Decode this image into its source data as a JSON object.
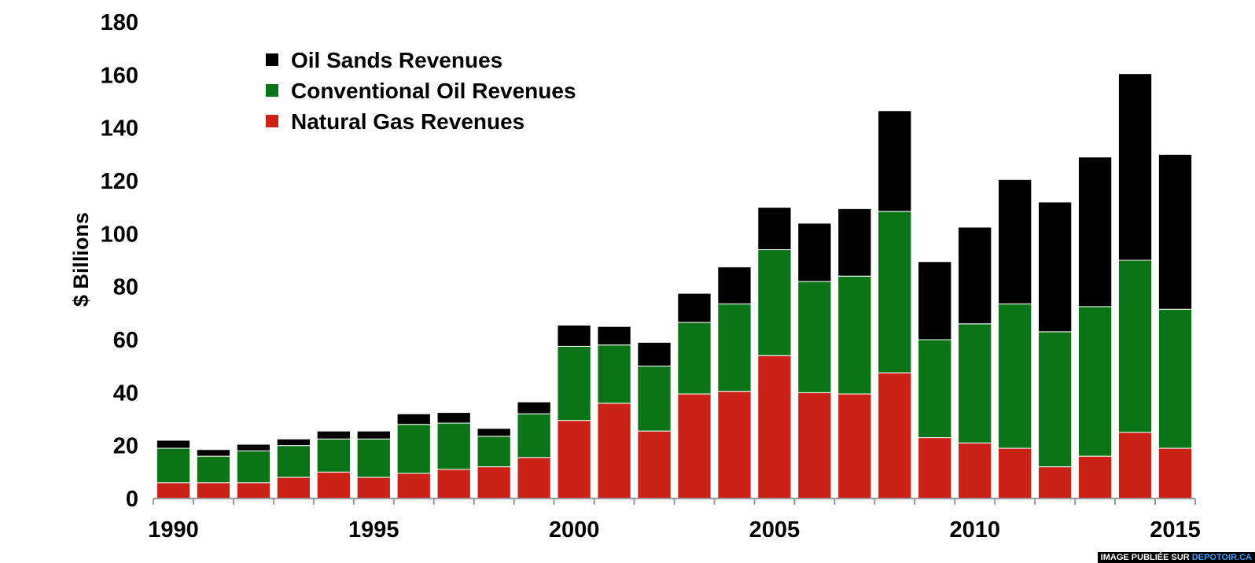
{
  "chart_data": {
    "type": "bar",
    "stacked": true,
    "categories": [
      "1990",
      "1991",
      "1992",
      "1993",
      "1994",
      "1995",
      "1996",
      "1997",
      "1998",
      "1999",
      "2000",
      "2001",
      "2002",
      "2003",
      "2004",
      "2005",
      "2006",
      "2007",
      "2008",
      "2009",
      "2010",
      "2011",
      "2012",
      "2013",
      "2014",
      "2015"
    ],
    "x_tick_labels": [
      "1990",
      "1995",
      "2000",
      "2005",
      "2010",
      "2015"
    ],
    "series": [
      {
        "name": "Natural Gas Revenues",
        "color": "#cc2116",
        "values": [
          6,
          6,
          6,
          8,
          10,
          8,
          9.5,
          11,
          12,
          15.5,
          29.5,
          36,
          25.5,
          39.5,
          40.5,
          54,
          40,
          39.5,
          47.5,
          23,
          21,
          19,
          12,
          16,
          25,
          19
        ]
      },
      {
        "name": "Conventional Oil Revenues",
        "color": "#0a7416",
        "values": [
          13,
          10,
          12,
          12,
          12.5,
          14.5,
          18.5,
          17.5,
          11.5,
          16.5,
          28,
          22,
          24.5,
          27,
          33,
          40,
          42,
          44.5,
          61,
          37,
          45,
          54.5,
          51,
          56.5,
          65,
          52.5
        ]
      },
      {
        "name": "Oil Sands Revenues",
        "color": "#000000",
        "values": [
          3,
          2.5,
          2.5,
          2.5,
          3,
          3,
          4,
          4,
          3,
          4.5,
          8,
          7,
          9,
          11,
          14,
          16,
          22,
          25.5,
          38,
          29.5,
          36.5,
          47,
          49,
          56.5,
          70.5,
          58.5
        ]
      }
    ],
    "ylabel": "$ Billions",
    "ylim": [
      0,
      180
    ],
    "y_ticks": [
      "0",
      "20",
      "40",
      "60",
      "80",
      "100",
      "120",
      "140",
      "160",
      "180"
    ],
    "legend_position": "top-left",
    "grid": false
  },
  "watermark": {
    "prefix": "IMAGE PUBLIÉE SUR ",
    "site": "DEPOTOIR.CA"
  }
}
